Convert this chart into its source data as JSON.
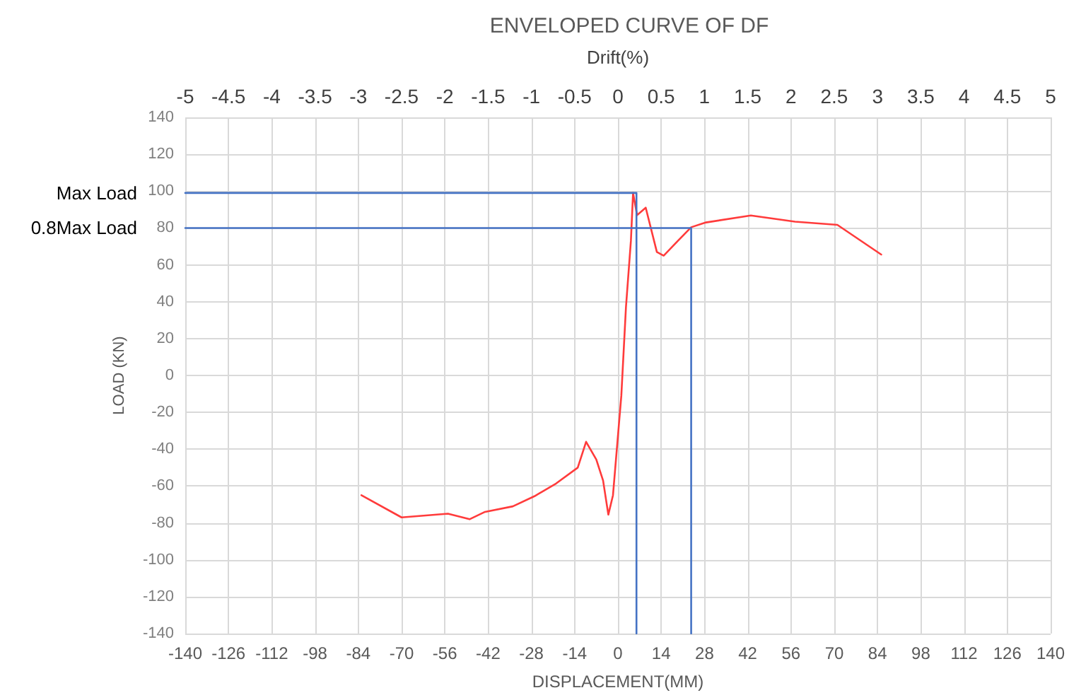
{
  "chart_data": {
    "type": "line",
    "title": "ENVELOPED CURVE OF DF",
    "xlabel": "DISPLACEMENT(MM)",
    "ylabel": "LOAD (KN)",
    "x2label": "Drift(%)",
    "xlim": [
      -140,
      140
    ],
    "xticks": [
      -140,
      -126,
      -112,
      -98,
      -84,
      -70,
      -56,
      -42,
      -28,
      -14,
      0,
      14,
      28,
      42,
      56,
      70,
      84,
      98,
      112,
      126,
      140
    ],
    "ylim": [
      -140,
      140
    ],
    "yticks": [
      -140,
      -120,
      -100,
      -80,
      -60,
      -40,
      -20,
      0,
      20,
      40,
      60,
      80,
      100,
      120,
      140
    ],
    "x2lim": [
      -5,
      5
    ],
    "x2ticks": [
      -5,
      -4.5,
      -4,
      -3.5,
      -3,
      -2.5,
      -2,
      -1.5,
      -1,
      -0.5,
      0,
      0.5,
      1,
      1.5,
      2,
      2.5,
      3,
      3.5,
      4,
      4.5,
      5
    ],
    "grid": true,
    "marker": "none",
    "line_style": "solid",
    "series": [
      {
        "color": "#ff3b3b",
        "x": [
          -83,
          -70,
          -55,
          -48,
          -43,
          -34,
          -27,
          -20,
          -13,
          -10.3,
          -7,
          -4.8,
          -3.1,
          -1.6,
          1.1,
          2.6,
          4.2,
          4.9,
          6.2,
          9,
          12.6,
          14.8,
          19.4,
          23.7,
          28.5,
          43,
          57.3,
          71,
          85.2
        ],
        "values": [
          -65,
          -77,
          -75,
          -78,
          -74,
          -71,
          -65.5,
          -58.6,
          -50,
          -36,
          -45.6,
          -57,
          -75.5,
          -65,
          -11,
          37,
          73,
          99,
          87,
          91,
          67,
          65,
          73,
          80.4,
          83,
          86.8,
          83.4,
          81.7,
          65.6
        ]
      },
      {
        "color": "#4472c4",
        "x": [
          -140,
          6,
          6
        ],
        "values": [
          99,
          99,
          -140
        ]
      },
      {
        "color": "#4472c4",
        "x": [
          -140,
          23.7,
          23.7
        ],
        "values": [
          80,
          80,
          -140
        ]
      }
    ],
    "annotations": [
      {
        "text": "Max Load",
        "x": -140,
        "y": 99
      },
      {
        "text": "0.8Max Load",
        "x": -140,
        "y": 80
      }
    ]
  }
}
